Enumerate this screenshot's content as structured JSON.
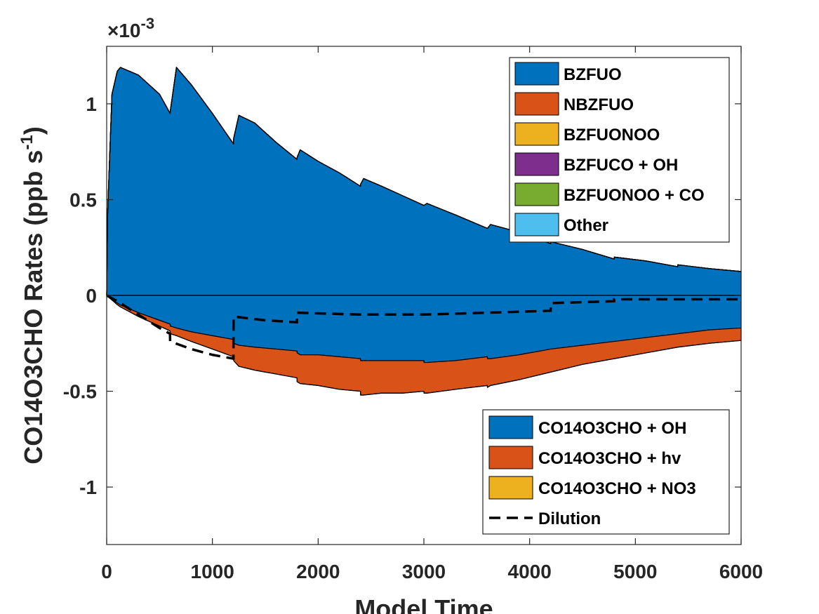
{
  "chart_data": {
    "type": "area",
    "xlabel": "Model Time",
    "ylabel_main": "CO14O3CHO Rates (ppb s",
    "ylabel_exp": "-1",
    "ylabel_close": ")",
    "exponent_prefix": "×10",
    "exponent_power": "-3",
    "xlim": [
      0,
      6000
    ],
    "ylim": [
      -1.3,
      1.3
    ],
    "grid": false,
    "xticks": [
      0,
      1000,
      2000,
      3000,
      4000,
      5000,
      6000
    ],
    "xtick_labels": [
      "0",
      "1000",
      "2000",
      "3000",
      "4000",
      "5000",
      "6000"
    ],
    "yticks": [
      -1,
      -0.5,
      0,
      0.5,
      1
    ],
    "ytick_labels": [
      "-1",
      "-0.5",
      "0",
      "0.5",
      "1"
    ],
    "x": [
      0,
      10,
      50,
      100,
      130,
      300,
      500,
      600,
      601,
      660,
      800,
      1000,
      1200,
      1201,
      1250,
      1400,
      1600,
      1800,
      1801,
      1830,
      2000,
      2200,
      2400,
      2401,
      2430,
      2600,
      2800,
      3000,
      3001,
      3030,
      3300,
      3600,
      3601,
      3630,
      3900,
      4200,
      4201,
      4500,
      4800,
      4801,
      5100,
      5400,
      5401,
      5700,
      6000
    ],
    "production": [
      {
        "name": "BZFUO",
        "color": "#0072BD",
        "values": [
          0,
          0.45,
          1.05,
          1.17,
          1.19,
          1.15,
          1.05,
          0.95,
          0.96,
          1.19,
          1.1,
          0.95,
          0.79,
          0.82,
          0.94,
          0.9,
          0.8,
          0.71,
          0.72,
          0.76,
          0.7,
          0.64,
          0.57,
          0.58,
          0.61,
          0.57,
          0.52,
          0.47,
          0.47,
          0.48,
          0.42,
          0.35,
          0.35,
          0.37,
          0.33,
          0.27,
          0.28,
          0.24,
          0.19,
          0.2,
          0.18,
          0.15,
          0.16,
          0.14,
          0.125
        ]
      },
      {
        "name": "NBZFUO",
        "color": "#D95319",
        "values": [
          0,
          0,
          0,
          0,
          0,
          0,
          0,
          0,
          0,
          0,
          0,
          0,
          0,
          0,
          0,
          0,
          0,
          0,
          0,
          0,
          0,
          0,
          0,
          0,
          0,
          0,
          0,
          0,
          0,
          0,
          0,
          0,
          0,
          0,
          0,
          0,
          0,
          0,
          0,
          0,
          0,
          0,
          0,
          0,
          0
        ]
      },
      {
        "name": "BZFUONOO",
        "color": "#EDB120",
        "values": [
          0,
          0,
          0,
          0,
          0,
          0,
          0,
          0,
          0,
          0,
          0,
          0,
          0,
          0,
          0,
          0,
          0,
          0,
          0,
          0,
          0,
          0,
          0,
          0,
          0,
          0,
          0,
          0,
          0,
          0,
          0,
          0,
          0,
          0,
          0,
          0,
          0,
          0,
          0,
          0,
          0,
          0,
          0,
          0,
          0
        ]
      },
      {
        "name": "BZFUCO + OH",
        "color": "#7E2F8E",
        "values": [
          0,
          0,
          0,
          0,
          0,
          0,
          0,
          0,
          0,
          0,
          0,
          0,
          0,
          0,
          0,
          0,
          0,
          0,
          0,
          0,
          0,
          0,
          0,
          0,
          0,
          0,
          0,
          0,
          0,
          0,
          0,
          0,
          0,
          0,
          0,
          0,
          0,
          0,
          0,
          0,
          0,
          0,
          0,
          0,
          0
        ]
      },
      {
        "name": "BZFUONOO + CO",
        "color": "#77AC30",
        "values": [
          0,
          0,
          0,
          0,
          0,
          0,
          0,
          0,
          0,
          0,
          0,
          0,
          0,
          0,
          0,
          0,
          0,
          0,
          0,
          0,
          0,
          0,
          0,
          0,
          0,
          0,
          0,
          0,
          0,
          0,
          0,
          0,
          0,
          0,
          0,
          0,
          0,
          0,
          0,
          0,
          0,
          0,
          0,
          0,
          0
        ]
      },
      {
        "name": "Other",
        "color": "#4DBEEE",
        "values": [
          0,
          0,
          0,
          0,
          0,
          0,
          0,
          0,
          0,
          0,
          0,
          0,
          0,
          0,
          0,
          0,
          0,
          0,
          0,
          0,
          0,
          0,
          0,
          0,
          0,
          0,
          0,
          0,
          0,
          0,
          0,
          0,
          0,
          0,
          0,
          0,
          0,
          0,
          0,
          0,
          0,
          0,
          0,
          0,
          0
        ]
      }
    ],
    "loss": [
      {
        "name": "CO14O3CHO + OH",
        "color": "#0072BD",
        "values": [
          0,
          -0.005,
          -0.02,
          -0.04,
          -0.05,
          -0.09,
          -0.13,
          -0.15,
          -0.16,
          -0.17,
          -0.19,
          -0.21,
          -0.23,
          -0.25,
          -0.26,
          -0.27,
          -0.28,
          -0.29,
          -0.3,
          -0.31,
          -0.31,
          -0.32,
          -0.33,
          -0.34,
          -0.34,
          -0.34,
          -0.34,
          -0.34,
          -0.35,
          -0.35,
          -0.34,
          -0.32,
          -0.33,
          -0.33,
          -0.31,
          -0.28,
          -0.28,
          -0.26,
          -0.24,
          -0.24,
          -0.22,
          -0.2,
          -0.2,
          -0.18,
          -0.17
        ]
      },
      {
        "name": "CO14O3CHO + hv",
        "color": "#D95319",
        "values": [
          0,
          -0.001,
          -0.004,
          -0.008,
          -0.01,
          -0.02,
          -0.03,
          -0.035,
          -0.04,
          -0.04,
          -0.05,
          -0.07,
          -0.09,
          -0.09,
          -0.11,
          -0.12,
          -0.13,
          -0.14,
          -0.15,
          -0.15,
          -0.16,
          -0.17,
          -0.17,
          -0.18,
          -0.18,
          -0.17,
          -0.17,
          -0.16,
          -0.16,
          -0.16,
          -0.15,
          -0.15,
          -0.15,
          -0.14,
          -0.13,
          -0.12,
          -0.12,
          -0.1,
          -0.09,
          -0.09,
          -0.08,
          -0.07,
          -0.07,
          -0.07,
          -0.065
        ]
      },
      {
        "name": "CO14O3CHO + NO3",
        "color": "#EDB120",
        "values": [
          0,
          0,
          0,
          0,
          0,
          0,
          0,
          0,
          0,
          0,
          0,
          0,
          0,
          0,
          0,
          0,
          0,
          0,
          0,
          0,
          0,
          0,
          0,
          0,
          0,
          0,
          0,
          0,
          0,
          0,
          0,
          0,
          0,
          0,
          0,
          0,
          0,
          0,
          0,
          0,
          0,
          0,
          0,
          0,
          0
        ]
      }
    ],
    "dilution": {
      "name": "Dilution",
      "x": [
        0,
        100,
        300,
        500,
        599,
        600,
        800,
        1000,
        1199,
        1200,
        1500,
        1799,
        1800,
        2400,
        3000,
        3600,
        4199,
        4200,
        4799,
        4800,
        6000
      ],
      "y": [
        0,
        -0.03,
        -0.1,
        -0.17,
        -0.2,
        -0.24,
        -0.28,
        -0.31,
        -0.33,
        -0.11,
        -0.13,
        -0.14,
        -0.09,
        -0.1,
        -0.1,
        -0.09,
        -0.08,
        -0.04,
        -0.03,
        -0.02,
        -0.02
      ]
    },
    "legend_production_position": "top-right",
    "legend_loss_position": "bottom-right"
  }
}
